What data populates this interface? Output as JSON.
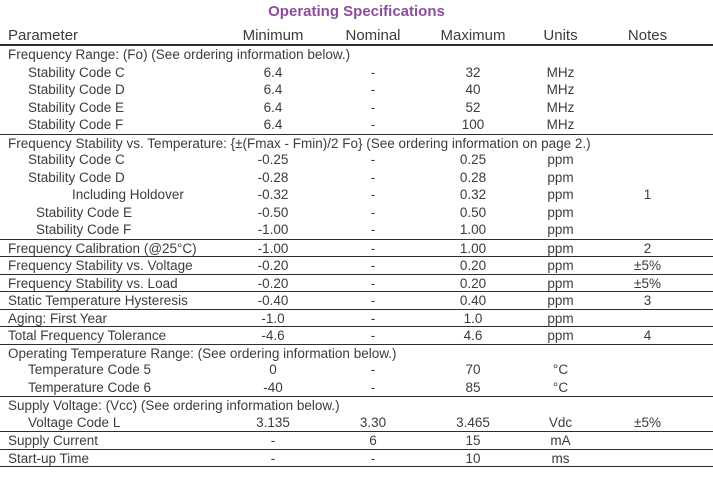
{
  "title": "Operating Specifications",
  "accent_color": "#8E4C9E",
  "table": {
    "columns": [
      "Parameter",
      "Minimum",
      "Nominal",
      "Maximum",
      "Units",
      "Notes"
    ],
    "rows": [
      {
        "type": "section",
        "label": "Frequency Range: (Fo) (See ordering information below.)",
        "sep": false
      },
      {
        "type": "data",
        "label": "Stability Code C",
        "indent": 20,
        "min": "6.4",
        "nom": "-",
        "max": "32",
        "units": "MHz",
        "notes": "",
        "sep": false
      },
      {
        "type": "data",
        "label": "Stability Code D",
        "indent": 20,
        "min": "6.4",
        "nom": "-",
        "max": "40",
        "units": "MHz",
        "notes": "",
        "sep": false
      },
      {
        "type": "data",
        "label": "Stability Code E",
        "indent": 20,
        "min": "6.4",
        "nom": "-",
        "max": "52",
        "units": "MHz",
        "notes": "",
        "sep": false
      },
      {
        "type": "data",
        "label": "Stability Code F",
        "indent": 20,
        "min": "6.4",
        "nom": "-",
        "max": "100",
        "units": "MHz",
        "notes": "",
        "sep": false
      },
      {
        "type": "section",
        "label": "Frequency Stability vs. Temperature: {±(Fmax - Fmin)/2 Fo} (See ordering information on page 2.)",
        "sep": true
      },
      {
        "type": "data",
        "label": "Stability Code C",
        "indent": 20,
        "min": "-0.25",
        "nom": "-",
        "max": "0.25",
        "units": "ppm",
        "notes": "",
        "sep": false
      },
      {
        "type": "data",
        "label": "Stability Code D",
        "indent": 20,
        "min": "-0.28",
        "nom": "-",
        "max": "0.28",
        "units": "ppm",
        "notes": "",
        "sep": false
      },
      {
        "type": "data",
        "label": "Including Holdover",
        "indent": 64,
        "min": "-0.32",
        "nom": "-",
        "max": "0.32",
        "units": "ppm",
        "notes": "1",
        "sep": false
      },
      {
        "type": "data",
        "label": "Stability Code E",
        "indent": 28,
        "min": "-0.50",
        "nom": "-",
        "max": "0.50",
        "units": "ppm",
        "notes": "",
        "sep": false
      },
      {
        "type": "data",
        "label": "Stability Code F",
        "indent": 28,
        "min": "-1.00",
        "nom": "-",
        "max": "1.00",
        "units": "ppm",
        "notes": "",
        "sep": false
      },
      {
        "type": "data",
        "label": "Frequency Calibration (@25°C)",
        "indent": 0,
        "min": "-1.00",
        "nom": "-",
        "max": "1.00",
        "units": "ppm",
        "notes": "2",
        "sep": true
      },
      {
        "type": "data",
        "label": "Frequency Stability vs. Voltage",
        "indent": 0,
        "min": "-0.20",
        "nom": "-",
        "max": "0.20",
        "units": "ppm",
        "notes": "±5%",
        "sep": true
      },
      {
        "type": "data",
        "label": "Frequency Stability vs. Load",
        "indent": 0,
        "min": "-0.20",
        "nom": "-",
        "max": "0.20",
        "units": "ppm",
        "notes": "±5%",
        "sep": true
      },
      {
        "type": "data",
        "label": "Static Temperature Hysteresis",
        "indent": 0,
        "min": "-0.40",
        "nom": "-",
        "max": "0.40",
        "units": "ppm",
        "notes": "3",
        "sep": true
      },
      {
        "type": "data",
        "label": "Aging: First Year",
        "indent": 0,
        "min": "-1.0",
        "nom": "-",
        "max": "1.0",
        "units": "ppm",
        "notes": "",
        "sep": true
      },
      {
        "type": "data",
        "label": "Total Frequency Tolerance",
        "indent": 0,
        "min": "-4.6",
        "nom": "-",
        "max": "4.6",
        "units": "ppm",
        "notes": "4",
        "sep": true
      },
      {
        "type": "section",
        "label": "Operating Temperature Range: (See ordering information below.)",
        "sep": true
      },
      {
        "type": "data",
        "label": "Temperature Code 5",
        "indent": 20,
        "min": "0",
        "nom": "-",
        "max": "70",
        "units": "°C",
        "notes": "",
        "sep": false
      },
      {
        "type": "data",
        "label": "Temperature Code 6",
        "indent": 20,
        "min": "-40",
        "nom": "-",
        "max": "85",
        "units": "°C",
        "notes": "",
        "sep": false
      },
      {
        "type": "section",
        "label": "Supply Voltage: (Vcc) (See ordering information below.)",
        "sep": true
      },
      {
        "type": "data",
        "label": "Voltage Code L",
        "indent": 20,
        "min": "3.135",
        "nom": "3.30",
        "max": "3.465",
        "units": "Vdc",
        "notes": "±5%",
        "sep": false
      },
      {
        "type": "data",
        "label": "Supply Current",
        "indent": 0,
        "min": "-",
        "nom": "6",
        "max": "15",
        "units": "mA",
        "notes": "",
        "sep": true
      },
      {
        "type": "data",
        "label": "Start-up Time",
        "indent": 0,
        "min": "-",
        "nom": "-",
        "max": "10",
        "units": "ms",
        "notes": "",
        "sep": true
      }
    ]
  }
}
